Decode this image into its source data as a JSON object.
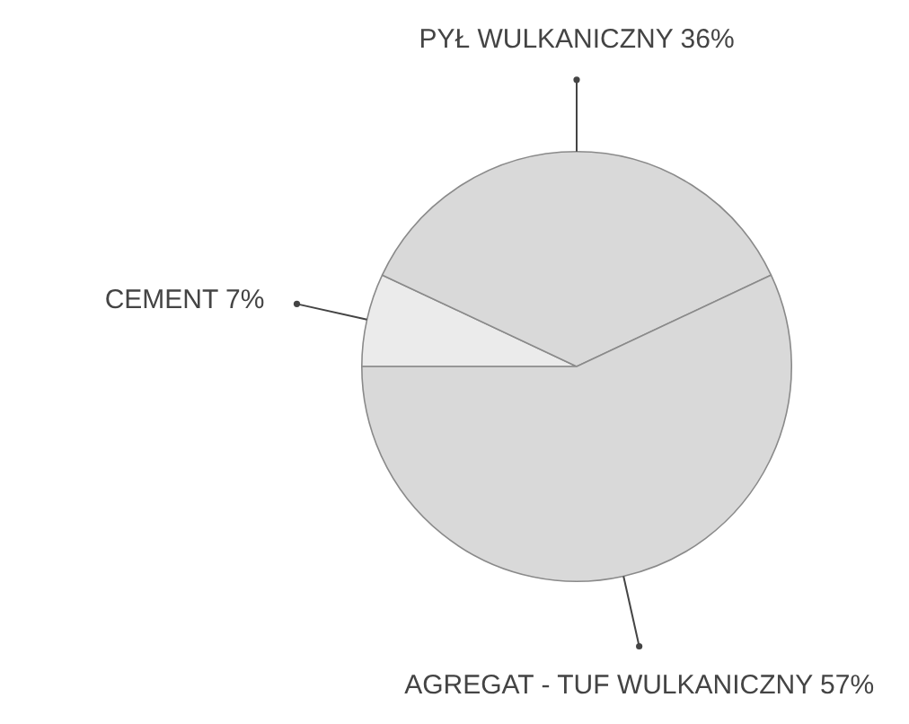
{
  "chart_data": {
    "type": "pie",
    "categories": [
      "CEMENT",
      "PYŁ WULKANICZNY",
      "AGREGAT - TUF WULKANICZNY"
    ],
    "values": [
      7,
      36,
      57
    ],
    "value_labels": [
      "7%",
      "36%",
      "57%"
    ],
    "colors": [
      "#ebebeb",
      "#d9d9d9",
      "#d9d9d9"
    ],
    "legend": false
  }
}
